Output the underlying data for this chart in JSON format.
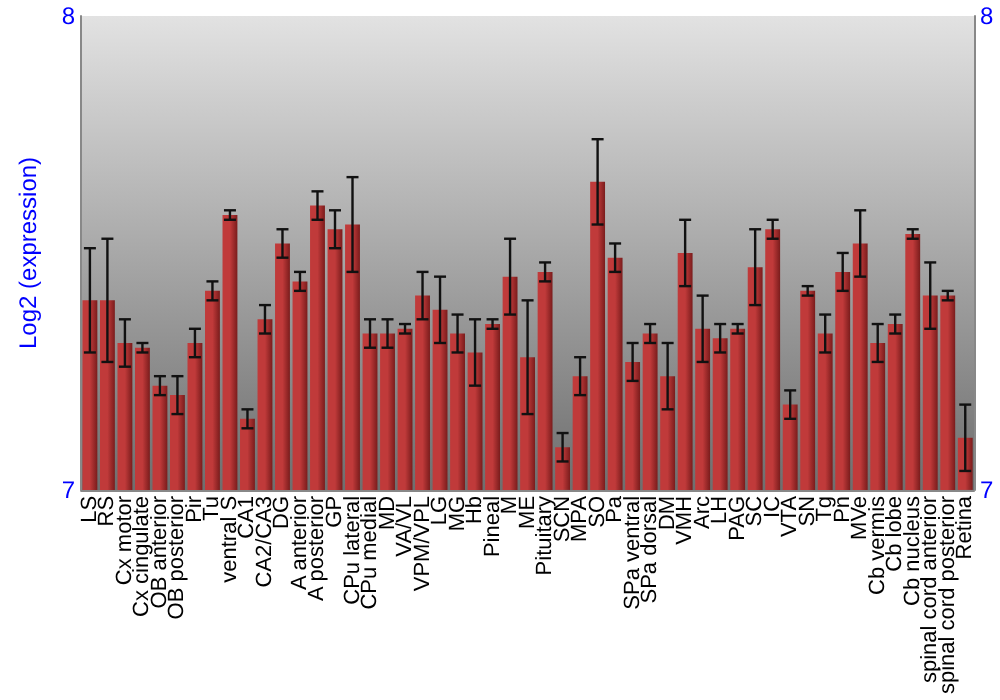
{
  "chart_data": {
    "type": "bar",
    "ylabel": "Log2 (expression)",
    "color": "#c03a3a",
    "categories": [
      "LS",
      "RS",
      "Cx motor",
      "Cx cingulate",
      "OB anterior",
      "OB posterior",
      "Pir",
      "Tu",
      "ventral S",
      "CA1",
      "CA2/CA3",
      "DG",
      "A anterior",
      "A posterior",
      "GP",
      "CPu lateral",
      "CPu medial",
      "MD",
      "VA/VL",
      "VPM/VPL",
      "LG",
      "MG",
      "Hb",
      "Pineal",
      "M",
      "ME",
      "Pituitary",
      "SCN",
      "MPA",
      "SO",
      "Pa",
      "SPa ventral",
      "SPa dorsal",
      "DM",
      "VMH",
      "Arc",
      "LH",
      "PAG",
      "SC",
      "IC",
      "VTA",
      "SN",
      "Tg",
      "Pn",
      "MVe",
      "Cb vermis",
      "Cb lobe",
      "Cb nucleus",
      "spinal cord anterior",
      "spinal cord posterior",
      "Retina"
    ],
    "values": [
      7.4,
      7.4,
      7.31,
      7.3,
      7.22,
      7.2,
      7.31,
      7.42,
      7.58,
      7.15,
      7.36,
      7.52,
      7.44,
      7.6,
      7.55,
      7.56,
      7.33,
      7.33,
      7.34,
      7.41,
      7.38,
      7.33,
      7.29,
      7.35,
      7.45,
      7.28,
      7.46,
      7.09,
      7.24,
      7.65,
      7.49,
      7.27,
      7.33,
      7.24,
      7.5,
      7.34,
      7.32,
      7.34,
      7.47,
      7.55,
      7.18,
      7.42,
      7.33,
      7.46,
      7.52,
      7.31,
      7.35,
      7.54,
      7.41,
      7.41,
      7.11
    ],
    "errors": [
      0.11,
      0.13,
      0.05,
      0.01,
      0.02,
      0.04,
      0.03,
      0.02,
      0.01,
      0.02,
      0.03,
      0.03,
      0.02,
      0.03,
      0.04,
      0.1,
      0.03,
      0.03,
      0.01,
      0.05,
      0.07,
      0.04,
      0.07,
      0.01,
      0.08,
      0.12,
      0.02,
      0.03,
      0.04,
      0.09,
      0.03,
      0.04,
      0.02,
      0.07,
      0.07,
      0.07,
      0.03,
      0.01,
      0.08,
      0.02,
      0.03,
      0.01,
      0.04,
      0.04,
      0.07,
      0.04,
      0.02,
      0.01,
      0.07,
      0.01,
      0.07
    ],
    "ylim": [
      7,
      8
    ],
    "yticks": [
      7,
      8
    ],
    "y2lim": [
      7,
      8
    ],
    "y2ticks": [
      7,
      8
    ],
    "grid": false
  }
}
